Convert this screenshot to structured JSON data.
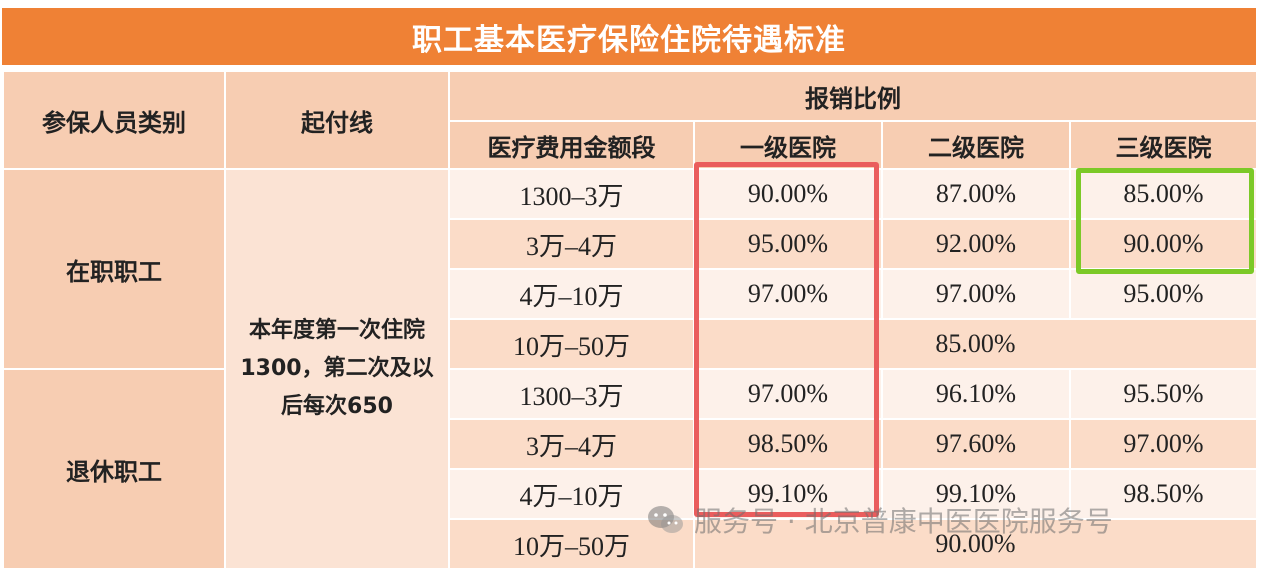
{
  "title": "职工基本医疗保险住院待遇标准",
  "headers": {
    "category": "参保人员类别",
    "start_line": "起付线",
    "ratio": "报销比例",
    "cost_range": "医疗费用金额段",
    "level1": "一级医院",
    "level2": "二级医院",
    "level3": "三级医院"
  },
  "groups": {
    "employed": "在职职工",
    "retired": "退休职工"
  },
  "start_line_text": "本年度第一次住院1300，第二次及以后每次650",
  "rows": [
    {
      "range": "1300–3万",
      "l1": "90.00%",
      "l2": "87.00%",
      "l3": "85.00%"
    },
    {
      "range": "3万–4万",
      "l1": "95.00%",
      "l2": "92.00%",
      "l3": "90.00%"
    },
    {
      "range": "4万–10万",
      "l1": "97.00%",
      "l2": "97.00%",
      "l3": "95.00%"
    },
    {
      "range": "10万–50万",
      "merged": "85.00%"
    },
    {
      "range": "1300–3万",
      "l1": "97.00%",
      "l2": "96.10%",
      "l3": "95.50%"
    },
    {
      "range": "3万–4万",
      "l1": "98.50%",
      "l2": "97.60%",
      "l3": "97.00%"
    },
    {
      "range": "4万–10万",
      "l1": "99.10%",
      "l2": "99.10%",
      "l3": "98.50%"
    },
    {
      "range": "10万–50万",
      "merged": "90.00%"
    }
  ],
  "watermark": "服务号 · 北京普康中医医院服务号",
  "highlight_colors": {
    "red": "#ea5d5d",
    "green": "#7cc927"
  }
}
